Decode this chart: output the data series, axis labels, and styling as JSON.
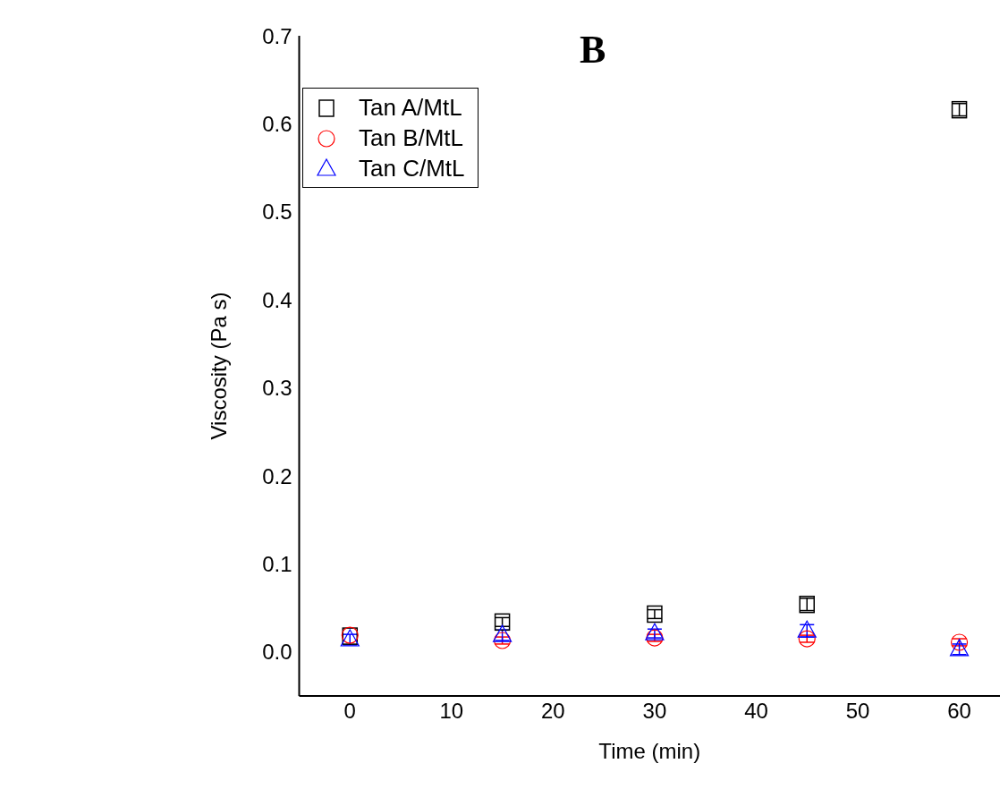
{
  "chart_data": {
    "type": "scatter",
    "title": "B",
    "xlabel": "Time (min)",
    "ylabel": "Viscosity (Pa s)",
    "x": [
      0,
      15,
      30,
      45,
      60
    ],
    "series": [
      {
        "name": "Tan A/MtL",
        "color": "#000000",
        "marker": "square",
        "values": [
          0.018,
          0.034,
          0.043,
          0.054,
          0.616
        ],
        "errors": [
          null,
          0.005,
          0.005,
          0.007,
          0.007
        ]
      },
      {
        "name": "Tan B/MtL",
        "color": "#ff0000",
        "marker": "circle",
        "values": [
          0.019,
          0.013,
          0.016,
          0.015,
          0.011
        ],
        "errors": [
          null,
          0.004,
          0.004,
          0.004,
          0.004
        ]
      },
      {
        "name": "Tan C/MtL",
        "color": "#0000ff",
        "marker": "triangle",
        "values": [
          0.014,
          0.019,
          0.021,
          0.024,
          0.003
        ],
        "errors": [
          0.006,
          0.006,
          0.005,
          0.007,
          0.006
        ]
      }
    ],
    "xlim": [
      -5,
      64
    ],
    "xticks": [
      0,
      10,
      20,
      30,
      40,
      50,
      60
    ],
    "ylim": [
      -0.05,
      0.7
    ],
    "yticks": [
      {
        "value": 0,
        "label": "0.0"
      },
      0.1,
      0.2,
      0.3,
      0.4,
      0.5,
      0.6,
      0.7
    ],
    "grid": false,
    "legend": "top left"
  }
}
